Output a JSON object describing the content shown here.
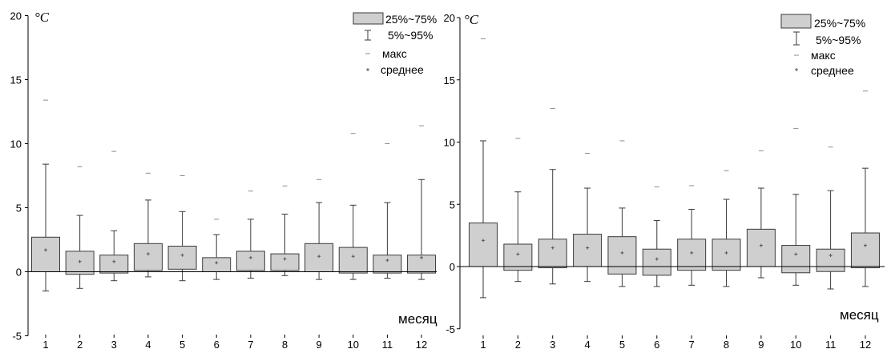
{
  "chart_data": [
    {
      "type": "box",
      "categories": [
        "1",
        "2",
        "3",
        "4",
        "5",
        "6",
        "7",
        "8",
        "9",
        "10",
        "11",
        "12"
      ],
      "xlabel": "месяц",
      "ylabel": "°C",
      "ylim": [
        -5,
        20
      ],
      "yticks": [
        -5,
        0,
        5,
        10,
        15,
        20
      ],
      "grid": false,
      "legend_position": "top-right",
      "reference_line_y": 0,
      "colors": {
        "box_fill": "#cfcfcf",
        "stroke": "#3a3a3a",
        "max_marker": "#8c8c8c",
        "mean_marker": "#555555"
      },
      "series": [
        {
          "name": "25%~75%",
          "low": [
            0.0,
            -0.2,
            -0.1,
            0.1,
            0.2,
            0.0,
            0.1,
            0.1,
            0.0,
            -0.1,
            -0.1,
            -0.1
          ],
          "high": [
            2.7,
            1.6,
            1.3,
            2.2,
            2.0,
            1.1,
            1.6,
            1.4,
            2.2,
            1.9,
            1.3,
            1.3
          ]
        },
        {
          "name": "5%~95%",
          "low": [
            -1.5,
            -1.3,
            -0.7,
            -0.4,
            -0.7,
            -0.6,
            -0.5,
            -0.3,
            -0.6,
            -0.6,
            -0.5,
            -0.6
          ],
          "high": [
            8.4,
            4.4,
            3.2,
            5.6,
            4.7,
            2.9,
            4.1,
            4.5,
            5.4,
            5.2,
            5.4,
            7.2
          ]
        },
        {
          "name": "макс",
          "values": [
            13.4,
            8.2,
            9.4,
            7.7,
            7.5,
            4.1,
            6.3,
            6.7,
            7.2,
            10.8,
            10.0,
            11.4
          ]
        },
        {
          "name": "среднее",
          "values": [
            1.7,
            0.8,
            0.8,
            1.4,
            1.3,
            0.7,
            1.1,
            1.0,
            1.2,
            1.2,
            0.9,
            1.1
          ]
        }
      ]
    },
    {
      "type": "box",
      "categories": [
        "1",
        "2",
        "3",
        "4",
        "5",
        "6",
        "7",
        "8",
        "9",
        "10",
        "11",
        "12"
      ],
      "xlabel": "месяц",
      "ylabel": "°C",
      "ylim": [
        -5,
        20
      ],
      "yticks": [
        -5,
        0,
        5,
        10,
        15,
        20
      ],
      "grid": false,
      "legend_position": "top-right",
      "reference_line_y": 0,
      "colors": {
        "box_fill": "#cfcfcf",
        "stroke": "#3a3a3a",
        "max_marker": "#8c8c8c",
        "mean_marker": "#555555"
      },
      "series": [
        {
          "name": "25%~75%",
          "low": [
            0.0,
            -0.3,
            -0.1,
            0.0,
            -0.6,
            -0.7,
            -0.3,
            -0.3,
            0.0,
            -0.5,
            -0.4,
            -0.1
          ],
          "high": [
            3.5,
            1.8,
            2.2,
            2.6,
            2.4,
            1.4,
            2.2,
            2.2,
            3.0,
            1.7,
            1.4,
            2.7
          ]
        },
        {
          "name": "5%~95%",
          "low": [
            -2.5,
            -1.2,
            -1.4,
            -1.2,
            -1.6,
            -1.6,
            -1.5,
            -1.6,
            -0.9,
            -1.5,
            -1.8,
            -1.6
          ],
          "high": [
            10.1,
            6.0,
            7.8,
            6.3,
            4.7,
            3.7,
            4.6,
            5.4,
            6.3,
            5.8,
            6.1,
            7.9
          ]
        },
        {
          "name": "макс",
          "values": [
            18.3,
            10.3,
            12.7,
            9.1,
            10.1,
            6.4,
            6.5,
            7.7,
            9.3,
            11.1,
            9.6,
            14.1
          ]
        },
        {
          "name": "среднее",
          "values": [
            2.1,
            1.0,
            1.5,
            1.5,
            1.1,
            0.6,
            1.1,
            1.1,
            1.7,
            1.0,
            0.9,
            1.7
          ]
        }
      ]
    }
  ]
}
